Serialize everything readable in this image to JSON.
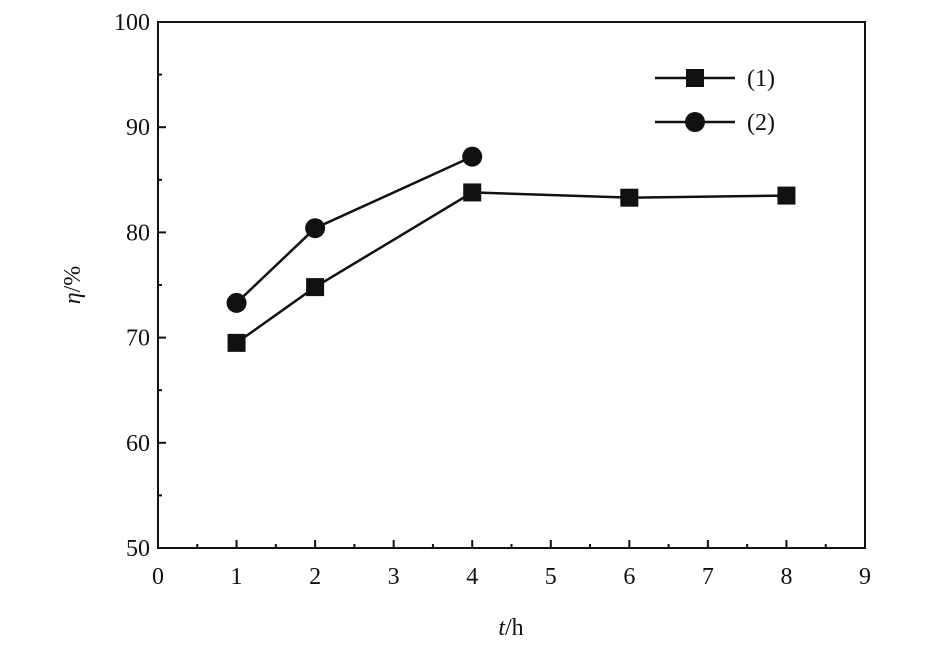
{
  "chart_data": {
    "type": "line",
    "xlabel_var": "t",
    "xlabel_unit": "/h",
    "ylabel_var": "η",
    "ylabel_unit": "/%",
    "xlim": [
      0,
      9
    ],
    "ylim": [
      50,
      100
    ],
    "x_ticks": [
      "0",
      "1",
      "2",
      "3",
      "4",
      "5",
      "6",
      "7",
      "8",
      "9"
    ],
    "y_ticks": [
      "50",
      "60",
      "70",
      "80",
      "90",
      "100"
    ],
    "grid": false,
    "legend_position": "top-right",
    "series": [
      {
        "name": "(1)",
        "marker": "square",
        "color": "#111111",
        "x": [
          1,
          2,
          4,
          6,
          8
        ],
        "y": [
          69.5,
          74.8,
          83.8,
          83.3,
          83.5
        ]
      },
      {
        "name": "(2)",
        "marker": "circle",
        "color": "#111111",
        "x": [
          1,
          2,
          4
        ],
        "y": [
          73.3,
          80.4,
          87.2
        ]
      }
    ]
  }
}
